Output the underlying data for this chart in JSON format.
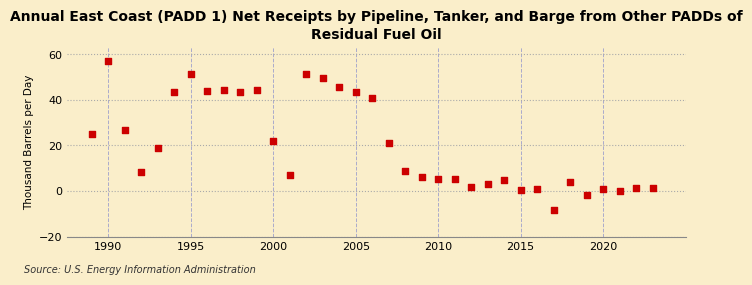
{
  "title": "Annual East Coast (PADD 1) Net Receipts by Pipeline, Tanker, and Barge from Other PADDs of\nResidual Fuel Oil",
  "ylabel": "Thousand Barrels per Day",
  "source": "Source: U.S. Energy Information Administration",
  "background_color": "#faeeca",
  "marker_color": "#cc0000",
  "years": [
    1989,
    1990,
    1991,
    1992,
    1993,
    1994,
    1995,
    1996,
    1997,
    1998,
    1999,
    2000,
    2001,
    2002,
    2003,
    2004,
    2005,
    2006,
    2007,
    2008,
    2009,
    2010,
    2011,
    2012,
    2013,
    2014,
    2015,
    2016,
    2017,
    2018,
    2019,
    2020,
    2021,
    2022,
    2023
  ],
  "values": [
    25.0,
    57.0,
    27.0,
    8.5,
    19.0,
    43.5,
    51.5,
    44.0,
    44.5,
    43.5,
    44.5,
    22.0,
    7.0,
    51.5,
    49.5,
    45.5,
    43.5,
    41.0,
    21.0,
    9.0,
    6.0,
    5.5,
    5.5,
    2.0,
    3.0,
    5.0,
    0.5,
    1.0,
    -8.5,
    4.0,
    -1.5,
    1.0,
    0.0,
    1.5,
    1.5
  ],
  "xlim": [
    1987.5,
    2025
  ],
  "ylim": [
    -20,
    63
  ],
  "yticks": [
    -20,
    0,
    20,
    40,
    60
  ],
  "xticks": [
    1990,
    1995,
    2000,
    2005,
    2010,
    2015,
    2020
  ],
  "hgrid_color": "#aaaaaa",
  "vgrid_color": "#aaaacc",
  "title_fontsize": 10,
  "ylabel_fontsize": 7.5,
  "tick_fontsize": 8,
  "source_fontsize": 7
}
